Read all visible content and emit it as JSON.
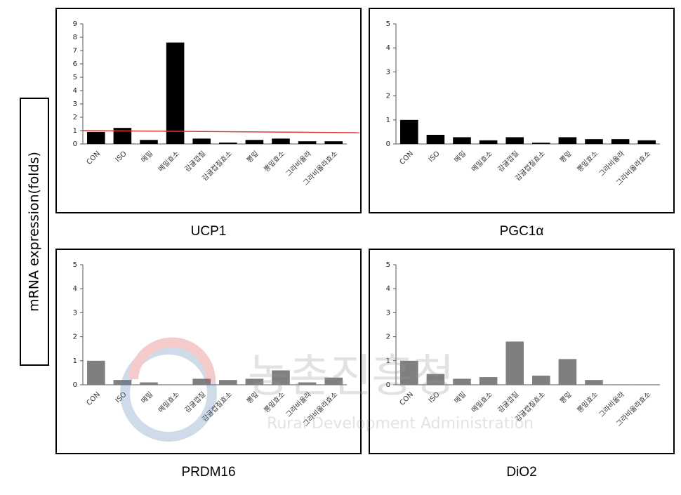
{
  "y_label": "mRNA expression(folds)",
  "watermark": {
    "main": "농촌진흥청",
    "sub": "Rural Development Administration"
  },
  "chart_data": [
    {
      "type": "bar",
      "title": "UCP1",
      "categories": [
        "CON",
        "ISO",
        "메밀",
        "메밀효소",
        "감귤껍질",
        "감귤껍질효소",
        "뽕잎",
        "뽕잎효소",
        "그라비올라",
        "그라비올라효소"
      ],
      "values": [
        0.9,
        1.2,
        0.3,
        7.6,
        0.4,
        0.1,
        0.3,
        0.4,
        0.2,
        0.2
      ],
      "color": "#000000",
      "ylim": [
        0,
        9
      ],
      "yticks": [
        0,
        1,
        2,
        3,
        4,
        5,
        6,
        7,
        8,
        9
      ],
      "reference_line": {
        "value": 1,
        "color": "#e03a3a"
      }
    },
    {
      "type": "bar",
      "title": "PGC1α",
      "categories": [
        "CON",
        "ISO",
        "메밀",
        "메밀효소",
        "감귤껍질",
        "감귤껍질효소",
        "뽕잎",
        "뽕잎효소",
        "그라비올라",
        "그라비올라효소"
      ],
      "values": [
        1.0,
        0.38,
        0.28,
        0.15,
        0.28,
        0.05,
        0.28,
        0.2,
        0.2,
        0.15
      ],
      "color": "#000000",
      "ylim": [
        0,
        5
      ],
      "yticks": [
        0,
        1,
        2,
        3,
        4,
        5
      ]
    },
    {
      "type": "bar",
      "title": "PRDM16",
      "categories": [
        "CON",
        "ISO",
        "메밀",
        "메밀효소",
        "감귤껍질",
        "감귤껍질효소",
        "뽕잎",
        "뽕잎효소",
        "그라비올라",
        "그라비올라효소"
      ],
      "values": [
        1.0,
        0.2,
        0.1,
        0,
        0.25,
        0.2,
        0.25,
        0.6,
        0.1,
        0.3
      ],
      "color": "#7f7f7f",
      "ylim": [
        0,
        5
      ],
      "yticks": [
        0,
        1,
        2,
        3,
        4,
        5
      ]
    },
    {
      "type": "bar",
      "title": "DiO2",
      "categories": [
        "CON",
        "ISO",
        "메밀",
        "메밀효소",
        "감귤껍질",
        "감귤껍질효소",
        "뽕잎",
        "뽕잎효소",
        "그라비올라",
        "그라비올라효소"
      ],
      "values": [
        1.0,
        0.45,
        0.25,
        0.32,
        1.8,
        0.38,
        1.07,
        0.2,
        0.02,
        0.02
      ],
      "color": "#7f7f7f",
      "ylim": [
        0,
        5
      ],
      "yticks": [
        0,
        1,
        2,
        3,
        4,
        5
      ]
    }
  ]
}
